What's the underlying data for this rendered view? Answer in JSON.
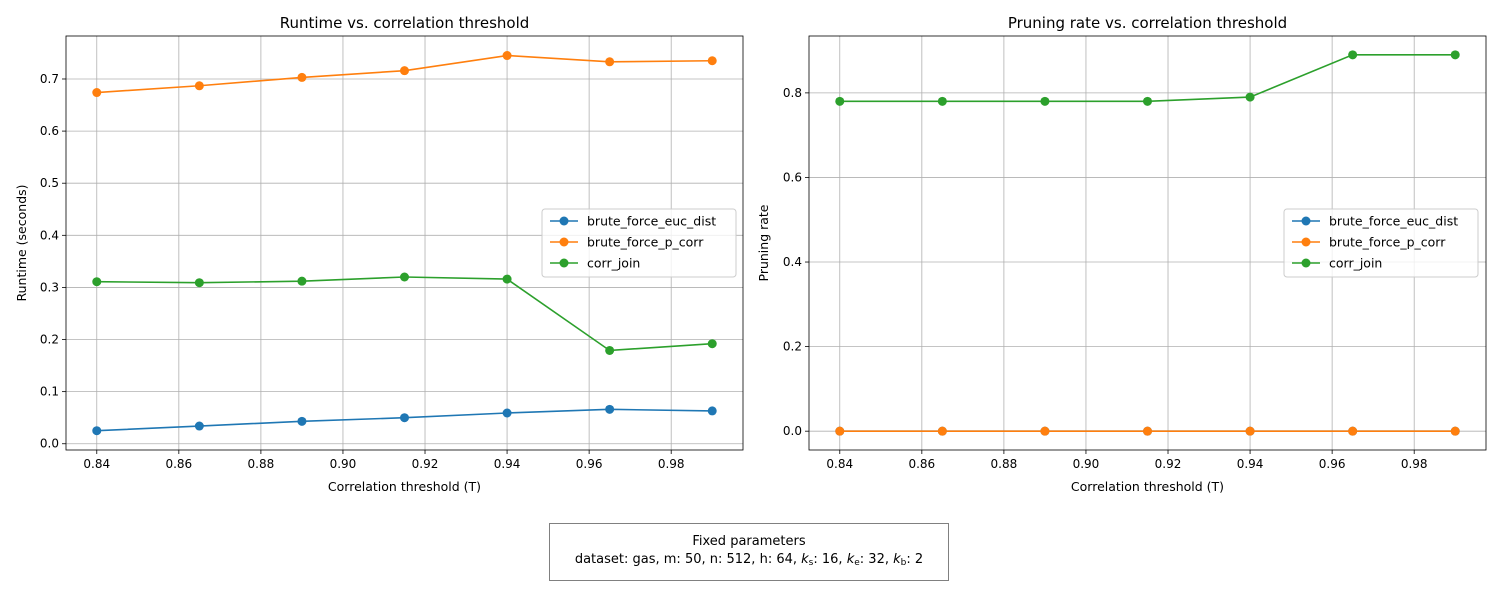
{
  "chart_data": [
    {
      "type": "line",
      "title": "Runtime vs. correlation threshold",
      "xlabel": "Correlation threshold (T)",
      "ylabel": "Runtime (seconds)",
      "x": [
        0.84,
        0.865,
        0.89,
        0.915,
        0.94,
        0.965,
        0.99
      ],
      "xlim": [
        0.8325,
        0.9975
      ],
      "ylim": [
        -0.012,
        0.7825
      ],
      "xticks": [
        0.84,
        0.86,
        0.88,
        0.9,
        0.92,
        0.94,
        0.96,
        0.98
      ],
      "xtick_labels": [
        "0.84",
        "0.86",
        "0.88",
        "0.90",
        "0.92",
        "0.94",
        "0.96",
        "0.98"
      ],
      "yticks": [
        0.0,
        0.1,
        0.2,
        0.3,
        0.4,
        0.5,
        0.6,
        0.7
      ],
      "ytick_labels": [
        "0.0",
        "0.1",
        "0.2",
        "0.3",
        "0.4",
        "0.5",
        "0.6",
        "0.7"
      ],
      "grid": true,
      "legend": "center-right",
      "series": [
        {
          "name": "brute_force_euc_dist",
          "color": "#1f77b4",
          "values": [
            0.025,
            0.034,
            0.043,
            0.05,
            0.059,
            0.066,
            0.063
          ]
        },
        {
          "name": "brute_force_p_corr",
          "color": "#ff7f0e",
          "values": [
            0.674,
            0.687,
            0.703,
            0.716,
            0.745,
            0.733,
            0.735
          ]
        },
        {
          "name": "corr_join",
          "color": "#2ca02c",
          "values": [
            0.311,
            0.309,
            0.312,
            0.32,
            0.316,
            0.179,
            0.192
          ]
        }
      ]
    },
    {
      "type": "line",
      "title": "Pruning rate vs. correlation threshold",
      "xlabel": "Correlation threshold (T)",
      "ylabel": "Pruning rate",
      "x": [
        0.84,
        0.865,
        0.89,
        0.915,
        0.94,
        0.965,
        0.99
      ],
      "xlim": [
        0.8325,
        0.9975
      ],
      "ylim": [
        -0.0445,
        0.9345
      ],
      "xticks": [
        0.84,
        0.86,
        0.88,
        0.9,
        0.92,
        0.94,
        0.96,
        0.98
      ],
      "xtick_labels": [
        "0.84",
        "0.86",
        "0.88",
        "0.90",
        "0.92",
        "0.94",
        "0.96",
        "0.98"
      ],
      "yticks": [
        0.0,
        0.2,
        0.4,
        0.6,
        0.8
      ],
      "ytick_labels": [
        "0.0",
        "0.2",
        "0.4",
        "0.6",
        "0.8"
      ],
      "grid": true,
      "legend": "center-right",
      "series": [
        {
          "name": "brute_force_euc_dist",
          "color": "#1f77b4",
          "values": [
            0,
            0,
            0,
            0,
            0,
            0,
            0
          ]
        },
        {
          "name": "brute_force_p_corr",
          "color": "#ff7f0e",
          "values": [
            0,
            0,
            0,
            0,
            0,
            0,
            0
          ]
        },
        {
          "name": "corr_join",
          "color": "#2ca02c",
          "values": [
            0.78,
            0.78,
            0.78,
            0.78,
            0.79,
            0.89,
            0.89
          ]
        }
      ]
    }
  ],
  "params_box": {
    "title": "Fixed parameters",
    "dataset_label": "dataset: gas, m: 50, n: 512, h: 64, ",
    "ks_symbol": "k",
    "ks_sub": "s",
    "ks_value": ": 16, ",
    "ke_symbol": "k",
    "ke_sub": "e",
    "ke_value": ": 32, ",
    "kb_symbol": "k",
    "kb_sub": "b",
    "kb_value": ": 2"
  }
}
